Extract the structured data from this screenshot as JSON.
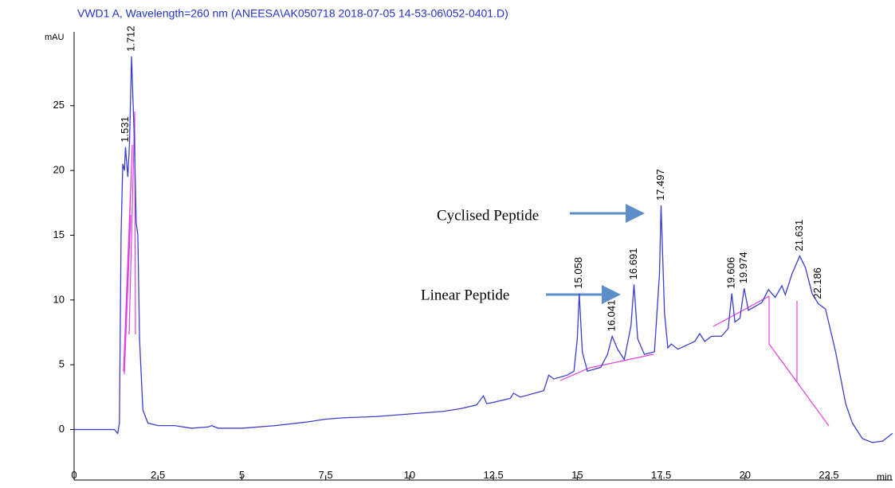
{
  "chart_data": {
    "type": "line",
    "title": "VWD1 A, Wavelength=260 nm (ANEESA\\AK050718 2018-07-05 14-53-06\\052-0401.D)",
    "ylabel": "mAU",
    "xlabel": "min",
    "xlim": [
      0,
      24.4
    ],
    "ylim": [
      -3.9,
      30.7
    ],
    "xticks": [
      0,
      2.5,
      5,
      7.5,
      10,
      12.5,
      15,
      17.5,
      20,
      22.5
    ],
    "yticks": [
      0,
      5,
      10,
      15,
      20,
      25
    ],
    "series": [
      {
        "color": "#3a3fd0",
        "x": [
          0,
          1.2,
          1.3,
          1.35,
          1.4,
          1.45,
          1.5,
          1.531,
          1.6,
          1.65,
          1.712,
          1.75,
          1.8,
          1.85,
          1.9,
          1.95,
          2.05,
          2.2,
          2.5,
          3,
          3.5,
          4,
          4.1,
          4.3,
          5,
          6,
          7,
          7.5,
          8,
          9,
          10,
          11,
          11.5,
          12,
          12.2,
          12.3,
          12.5,
          13,
          13.1,
          13.3,
          14,
          14.15,
          14.3,
          14.7,
          14.9,
          15.0,
          15.058,
          15.15,
          15.3,
          15.7,
          15.9,
          16.041,
          16.2,
          16.4,
          16.6,
          16.691,
          16.8,
          17.0,
          17.3,
          17.45,
          17.497,
          17.6,
          17.7,
          17.8,
          18,
          18.5,
          18.65,
          18.8,
          19.0,
          19.3,
          19.5,
          19.606,
          19.7,
          19.85,
          19.974,
          20.1,
          20.5,
          20.7,
          20.9,
          21.1,
          21.2,
          21.4,
          21.631,
          21.8,
          22.0,
          22.186,
          22.4,
          22.7,
          23,
          23.2,
          23.5,
          23.8,
          24.1,
          24.4
        ],
        "values": [
          0,
          0,
          -0.3,
          0.5,
          15,
          20.5,
          20,
          21.8,
          19.5,
          22,
          28.8,
          25.8,
          22,
          16,
          15,
          7,
          1.5,
          0.5,
          0.3,
          0.3,
          0.1,
          0.2,
          0.3,
          0.1,
          0.1,
          0.3,
          0.6,
          0.8,
          0.9,
          1.0,
          1.2,
          1.4,
          1.6,
          1.9,
          2.6,
          2.0,
          2.1,
          2.4,
          2.8,
          2.5,
          3.0,
          4.2,
          3.9,
          4.2,
          4.5,
          7,
          10.5,
          6,
          4.5,
          4.8,
          5.8,
          7.2,
          6.2,
          5.4,
          8,
          11.2,
          7,
          5.8,
          6,
          12,
          17.3,
          9,
          6.3,
          6.6,
          6.2,
          6.8,
          7.4,
          6.8,
          7.2,
          7.2,
          7.8,
          10.5,
          8.3,
          8.6,
          10.9,
          9.2,
          9.8,
          10.8,
          10.2,
          11.1,
          10.4,
          12,
          13.4,
          12.5,
          10.5,
          9.7,
          9.3,
          6,
          2,
          0.5,
          -0.7,
          -1.0,
          -0.9,
          -0.3
        ]
      }
    ],
    "peaks": [
      {
        "time": 1.531,
        "height": 21.8
      },
      {
        "time": 1.712,
        "height": 28.8
      },
      {
        "time": 15.058,
        "height": 10.5
      },
      {
        "time": 16.041,
        "height": 7.2
      },
      {
        "time": 16.691,
        "height": 11.2
      },
      {
        "time": 17.497,
        "height": 17.3
      },
      {
        "time": 19.606,
        "height": 10.5
      },
      {
        "time": 19.974,
        "height": 10.9
      },
      {
        "time": 21.631,
        "height": 13.4
      },
      {
        "time": 22.186,
        "height": 9.7
      }
    ],
    "annotations": [
      "Cyclised Peptide",
      "Linear Peptide"
    ]
  }
}
